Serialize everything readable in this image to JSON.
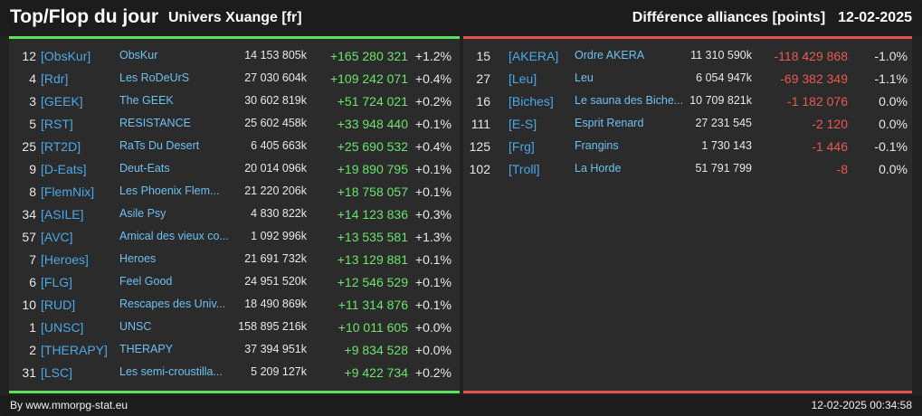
{
  "header": {
    "title": "Top/Flop du jour",
    "universe": "Univers Xuange [fr]",
    "metric": "Différence alliances [points]",
    "date": "12-02-2025"
  },
  "colors": {
    "positive": "#6be56b",
    "negative": "#e85a52",
    "tag": "#4ba8e8",
    "name": "#6ec0f0"
  },
  "top": [
    {
      "rank": "12",
      "tag": "[ObsKur]",
      "name": "ObsKur",
      "points": "14 153 805k",
      "diff": "+165 280 321",
      "pct": "+1.2%"
    },
    {
      "rank": "4",
      "tag": "[Rdr]",
      "name": "Les RoDeUrS",
      "points": "27 030 604k",
      "diff": "+109 242 071",
      "pct": "+0.4%"
    },
    {
      "rank": "3",
      "tag": "[GEEK]",
      "name": "The GEEK",
      "points": "30 602 819k",
      "diff": "+51 724 021",
      "pct": "+0.2%"
    },
    {
      "rank": "5",
      "tag": "[RST]",
      "name": "RESISTANCE",
      "points": "25 602 458k",
      "diff": "+33 948 440",
      "pct": "+0.1%"
    },
    {
      "rank": "25",
      "tag": "[RT2D]",
      "name": "RaTs Du Desert",
      "points": "6 405 663k",
      "diff": "+25 690 532",
      "pct": "+0.4%"
    },
    {
      "rank": "9",
      "tag": "[D-Eats]",
      "name": "Deut-Eats",
      "points": "20 014 096k",
      "diff": "+19 890 795",
      "pct": "+0.1%"
    },
    {
      "rank": "8",
      "tag": "[FlemNix]",
      "name": "Les Phoenix Flem...",
      "points": "21 220 206k",
      "diff": "+18 758 057",
      "pct": "+0.1%"
    },
    {
      "rank": "34",
      "tag": "[ASILE]",
      "name": "Asile Psy",
      "points": "4 830 822k",
      "diff": "+14 123 836",
      "pct": "+0.3%"
    },
    {
      "rank": "57",
      "tag": "[AVC]",
      "name": "Amical des vieux co...",
      "points": "1 092 996k",
      "diff": "+13 535 581",
      "pct": "+1.3%"
    },
    {
      "rank": "7",
      "tag": "[Heroes]",
      "name": "Heroes",
      "points": "21 691 732k",
      "diff": "+13 129 881",
      "pct": "+0.1%"
    },
    {
      "rank": "6",
      "tag": "[FLG]",
      "name": "Feel Good",
      "points": "24 951 520k",
      "diff": "+12 546 529",
      "pct": "+0.1%"
    },
    {
      "rank": "10",
      "tag": "[RUD]",
      "name": "Rescapes des Univ...",
      "points": "18 490 869k",
      "diff": "+11 314 876",
      "pct": "+0.1%"
    },
    {
      "rank": "1",
      "tag": "[UNSC]",
      "name": "UNSC",
      "points": "158 895 216k",
      "diff": "+10 011 605",
      "pct": "+0.0%"
    },
    {
      "rank": "2",
      "tag": "[THERAPY]",
      "name": "THERAPY",
      "points": "37 394 951k",
      "diff": "+9 834 528",
      "pct": "+0.0%"
    },
    {
      "rank": "31",
      "tag": "[LSC]",
      "name": "Les semi-croustilla...",
      "points": "5 209 127k",
      "diff": "+9 422 734",
      "pct": "+0.2%"
    }
  ],
  "flop": [
    {
      "rank": "15",
      "tag": "[AKERA]",
      "name": "Ordre AKERA",
      "points": "11 310 590k",
      "diff": "-118 429 868",
      "pct": "-1.0%"
    },
    {
      "rank": "27",
      "tag": "[Leu]",
      "name": "Leu",
      "points": "6 054 947k",
      "diff": "-69 382 349",
      "pct": "-1.1%"
    },
    {
      "rank": "16",
      "tag": "[Biches]",
      "name": "Le sauna des Biche...",
      "points": "10 709 821k",
      "diff": "-1 182 076",
      "pct": "0.0%"
    },
    {
      "rank": "111",
      "tag": "[E-S]",
      "name": "Esprit Renard",
      "points": "27 231 545",
      "diff": "-2 120",
      "pct": "0.0%"
    },
    {
      "rank": "125",
      "tag": "[Frg]",
      "name": "Frangins",
      "points": "1 730 143",
      "diff": "-1 446",
      "pct": "-0.1%"
    },
    {
      "rank": "102",
      "tag": "[Troll]",
      "name": "La Horde",
      "points": "51 791 799",
      "diff": "-8",
      "pct": "0.0%"
    }
  ],
  "footer": {
    "credit": "By www.mmorpg-stat.eu",
    "timestamp": "12-02-2025 00:34:58"
  }
}
